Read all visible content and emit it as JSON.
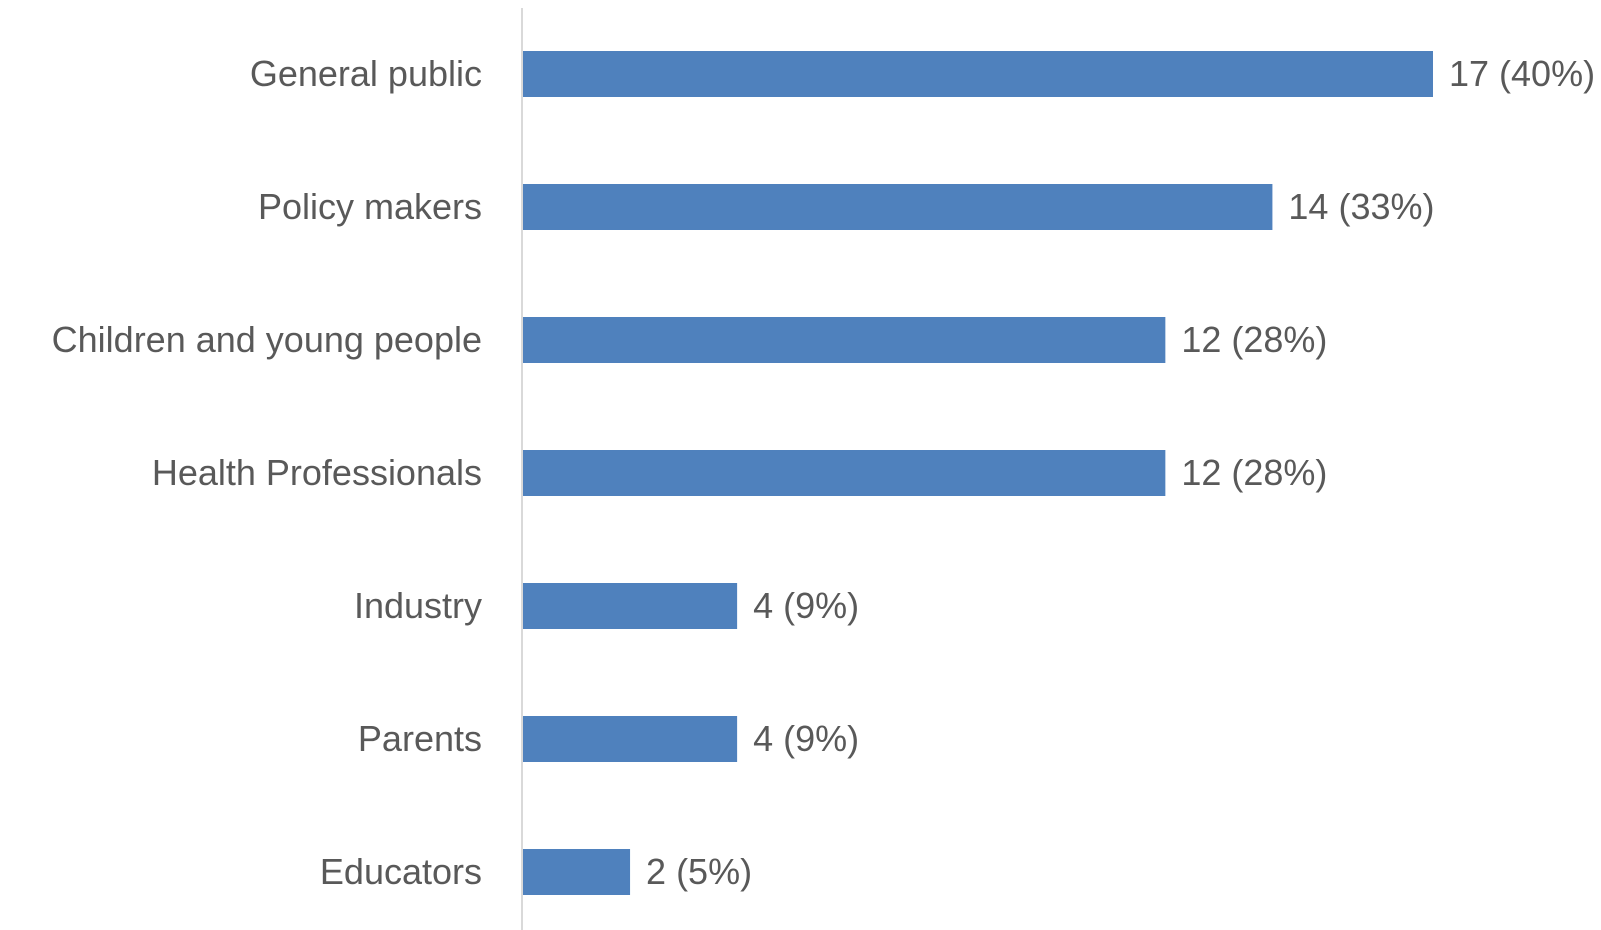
{
  "chart_data": {
    "type": "bar",
    "orientation": "horizontal",
    "categories": [
      "General public",
      "Policy makers",
      "Children and young people",
      "Health Professionals",
      "Industry",
      "Parents",
      "Educators"
    ],
    "values": [
      17,
      14,
      12,
      12,
      4,
      4,
      2
    ],
    "data_labels": [
      "17 (40%)",
      "14 (33%)",
      "12 (28%)",
      "12 (28%)",
      "4 (9%)",
      "4 (9%)",
      "2 (5%)"
    ],
    "title": "",
    "xlabel": "",
    "ylabel": "",
    "xlim": [
      0,
      17
    ],
    "grid": false,
    "legend": "none",
    "bar_color": "#4f81bd",
    "axis_color": "#d9d9d9",
    "label_color": "#595959"
  }
}
